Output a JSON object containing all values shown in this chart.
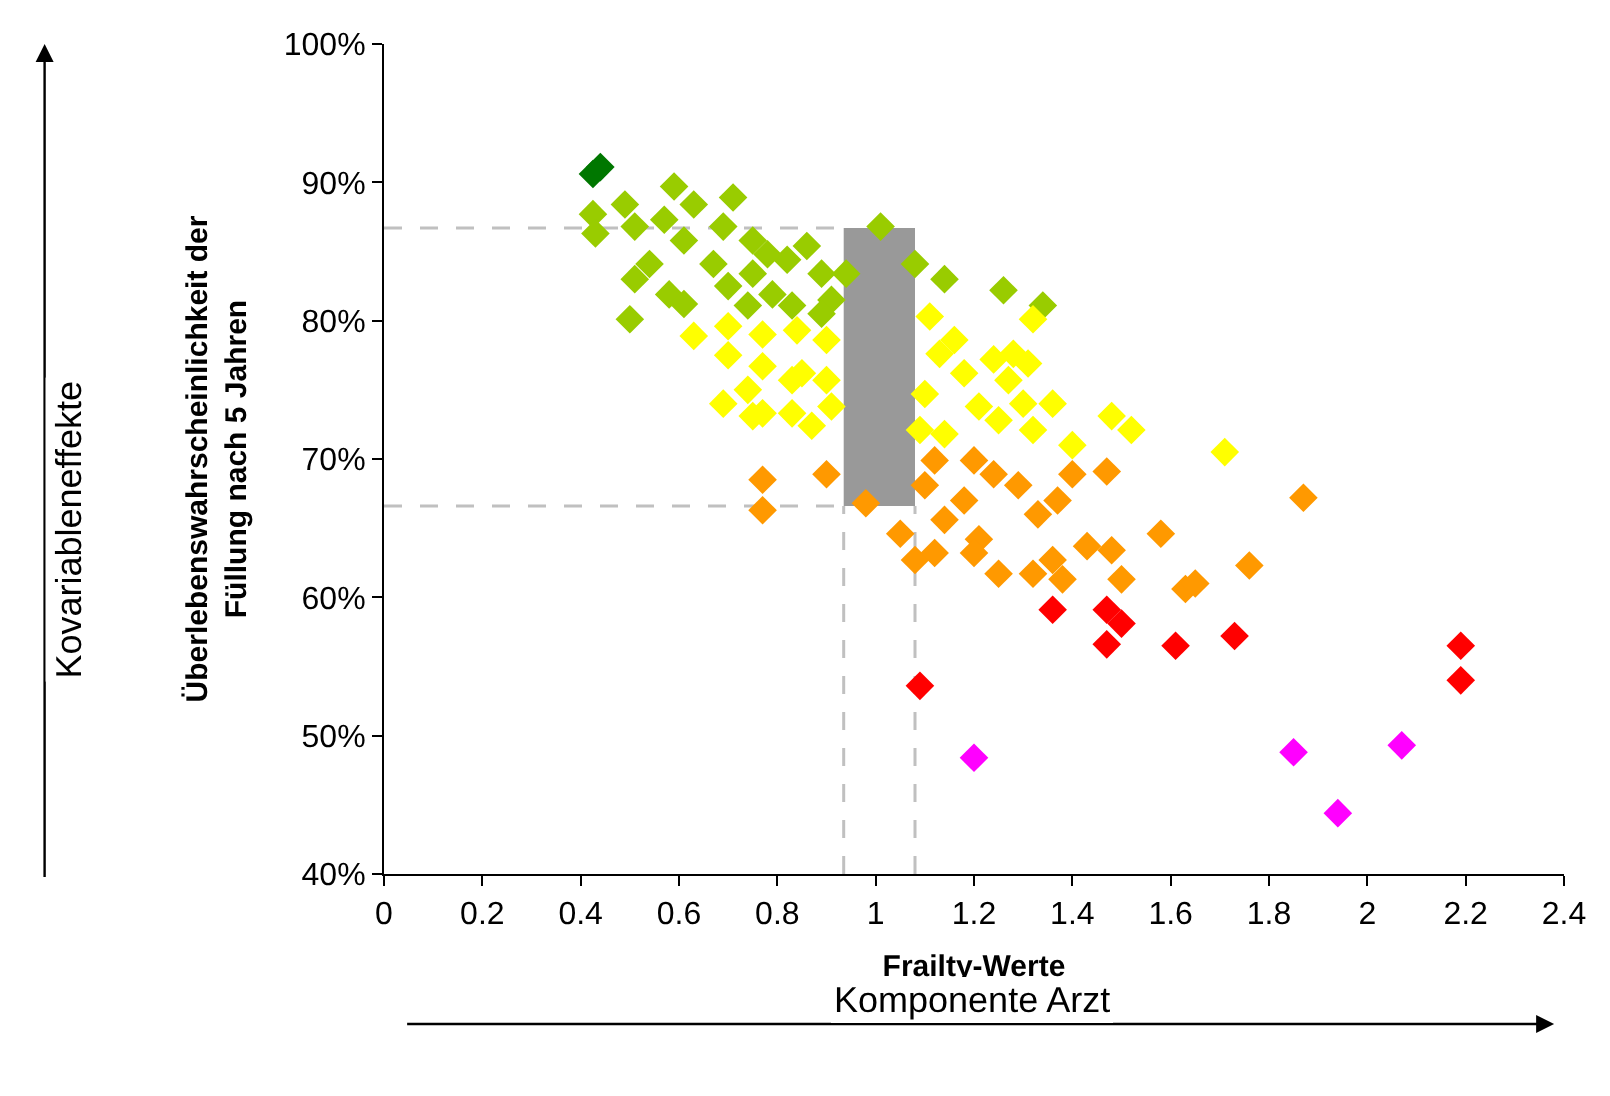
{
  "chart_data": {
    "type": "scatter",
    "xlabel": "Frailty-Werte",
    "ylabel": "Überlebenswahrscheinlichkeit der\nFüllung nach 5 Jahren",
    "annotations": [
      "Kovariableneffekte",
      "Komponente Arzt"
    ],
    "marker": "diamond",
    "grid": false,
    "xlim": [
      0,
      2.4
    ],
    "xticks": [
      0,
      0.2,
      0.4,
      0.6,
      0.8,
      1,
      1.2,
      1.4,
      1.6,
      1.8,
      2,
      2.2,
      2.4
    ],
    "ylim": [
      40,
      100
    ],
    "yticks": [
      {
        "value": 40,
        "label": "40%"
      },
      {
        "value": 50,
        "label": "50%"
      },
      {
        "value": 60,
        "label": "60%"
      },
      {
        "value": 70,
        "label": "70%"
      },
      {
        "value": 80,
        "label": "80%"
      },
      {
        "value": 90,
        "label": "90%"
      },
      {
        "value": 100,
        "label": "100%"
      }
    ],
    "ref_lines": [
      {
        "axis": "x",
        "value": 0.935,
        "color": "#c0c0c0",
        "line_style": "dashed"
      },
      {
        "axis": "x",
        "value": 1.08,
        "color": "#c0c0c0",
        "line_style": "dashed"
      },
      {
        "axis": "y",
        "value": 66.6,
        "color": "#c0c0c0",
        "line_style": "dashed"
      },
      {
        "axis": "y",
        "value": 86.7,
        "color": "#c0c0c0",
        "line_style": "dashed"
      }
    ],
    "series": [
      {
        "type": "bar",
        "color": "#999999",
        "x": [
          1.0075
        ],
        "base": [
          66.6
        ],
        "values": [
          20.1
        ]
      },
      {
        "color": "#007700",
        "x": [
          0.425,
          0.44
        ],
        "values": [
          90.6,
          91.1
        ]
      },
      {
        "color": "#99cc00",
        "x": [
          0.425,
          0.43,
          0.49,
          0.59,
          0.63,
          0.71,
          0.51,
          0.57,
          0.61,
          0.51,
          0.54,
          0.58,
          0.61,
          0.5,
          0.67,
          0.7,
          0.75,
          0.79,
          0.82,
          0.86,
          0.89,
          0.91,
          0.75,
          0.69,
          1.01,
          1.08,
          1.14,
          1.26,
          1.34,
          0.74,
          0.83,
          0.89,
          0.78,
          0.94
        ],
        "values": [
          87.7,
          86.3,
          88.4,
          89.7,
          88.4,
          88.9,
          86.8,
          87.3,
          85.8,
          83,
          84.1,
          81.9,
          81.2,
          80.1,
          84.1,
          82.5,
          83.4,
          81.9,
          84.4,
          85.4,
          83.4,
          81.5,
          85.8,
          86.8,
          86.8,
          84.1,
          83,
          82.2,
          81.1,
          81.1,
          81.1,
          80.5,
          84.8,
          83.4
        ]
      },
      {
        "color": "#ffff00",
        "x": [
          0.63,
          0.7,
          0.7,
          0.77,
          0.77,
          0.84,
          0.85,
          0.9,
          0.69,
          0.74,
          0.77,
          0.83,
          0.87,
          0.91,
          0.83,
          0.9,
          1.11,
          1.13,
          1.1,
          1.16,
          1.18,
          1.21,
          1.25,
          1.24,
          1.28,
          1.31,
          1.27,
          1.32,
          1.3,
          1.36,
          1.32,
          1.14,
          1.09,
          1.48,
          1.52,
          1.71,
          1.4,
          0.75
        ],
        "values": [
          78.9,
          79.6,
          77.5,
          79,
          76.7,
          79.3,
          76.2,
          78.6,
          74,
          75,
          73.3,
          73.3,
          72.4,
          73.8,
          75.7,
          75.7,
          80.3,
          77.6,
          74.7,
          78.6,
          76.2,
          73.8,
          72.8,
          77.2,
          77.6,
          76.9,
          75.7,
          80.1,
          74,
          74,
          72.1,
          71.8,
          72.1,
          73.1,
          72.1,
          70.5,
          71,
          73.1
        ]
      },
      {
        "color": "#ff9900",
        "x": [
          0.77,
          0.77,
          0.9,
          0.98,
          1.12,
          1.1,
          1.05,
          1.08,
          1.12,
          1.14,
          1.2,
          1.18,
          1.21,
          1.24,
          1.25,
          1.29,
          1.33,
          1.37,
          1.4,
          1.47,
          1.32,
          1.36,
          1.38,
          1.43,
          1.48,
          1.5,
          1.58,
          1.63,
          1.65,
          1.76,
          1.87,
          1.2
        ],
        "values": [
          68.5,
          66.3,
          68.9,
          66.8,
          69.9,
          68.1,
          64.6,
          62.7,
          63.2,
          65.6,
          69.9,
          67,
          64.2,
          68.9,
          61.7,
          68.1,
          66,
          67,
          68.9,
          69.1,
          61.7,
          62.7,
          61.3,
          63.7,
          63.4,
          61.3,
          64.6,
          60.6,
          61,
          62.3,
          67.2,
          63.2
        ]
      },
      {
        "color": "#ff0000",
        "x": [
          1.36,
          1.47,
          1.5,
          1.47,
          1.61,
          1.73,
          1.09,
          2.19,
          2.19
        ],
        "values": [
          59.1,
          59.1,
          58.1,
          56.6,
          56.5,
          57.2,
          53.6,
          56.5,
          54
        ]
      },
      {
        "color": "#ff00ff",
        "x": [
          1.2,
          1.85,
          1.94,
          2.07
        ],
        "values": [
          48.4,
          48.8,
          44.4,
          49.3
        ]
      }
    ]
  }
}
